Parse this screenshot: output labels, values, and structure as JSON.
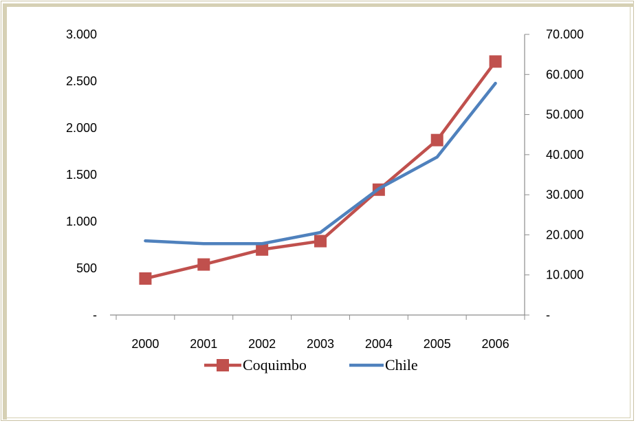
{
  "chart_data": {
    "type": "line",
    "title": "",
    "categories": [
      "2000",
      "2001",
      "2002",
      "2003",
      "2004",
      "2005",
      "2006"
    ],
    "y_left": {
      "range": [
        0,
        3000
      ],
      "ticks": [
        {
          "value": 0,
          "label": "-"
        },
        {
          "value": 500,
          "label": "500"
        },
        {
          "value": 1000,
          "label": "1.000"
        },
        {
          "value": 1500,
          "label": "1.500"
        },
        {
          "value": 2000,
          "label": "2.000"
        },
        {
          "value": 2500,
          "label": "2.500"
        },
        {
          "value": 3000,
          "label": "3.000"
        }
      ]
    },
    "y_right": {
      "range": [
        0,
        70000
      ],
      "ticks": [
        {
          "value": 0,
          "label": "-"
        },
        {
          "value": 10000,
          "label": "10.000"
        },
        {
          "value": 20000,
          "label": "20.000"
        },
        {
          "value": 30000,
          "label": "30.000"
        },
        {
          "value": 40000,
          "label": "40.000"
        },
        {
          "value": 50000,
          "label": "50.000"
        },
        {
          "value": 60000,
          "label": "60.000"
        },
        {
          "value": 70000,
          "label": "70.000"
        }
      ]
    },
    "series": [
      {
        "name": "Coquimbo",
        "axis": "left",
        "color": "#c0504d",
        "marker": "square",
        "values": [
          390,
          540,
          700,
          790,
          1340,
          1870,
          2710
        ]
      },
      {
        "name": "Chile",
        "axis": "right",
        "color": "#4f81bd",
        "marker": "none",
        "values": [
          18500,
          17800,
          17800,
          20600,
          31500,
          39400,
          57800
        ]
      }
    ],
    "legend_position": "bottom",
    "grid": false
  }
}
